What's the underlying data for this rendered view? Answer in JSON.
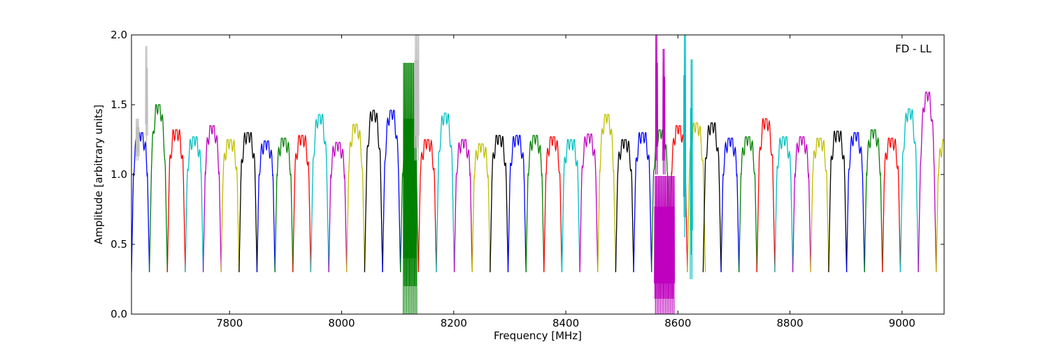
{
  "chart_data": {
    "type": "line",
    "title": "",
    "annotation": "FD - LL",
    "xlabel": "Frequency [MHz]",
    "ylabel": "Amplitude [arbitrary units]",
    "xlim": [
      7625,
      9075
    ],
    "ylim": [
      0.0,
      2.0
    ],
    "xticks": [
      7800,
      8000,
      8200,
      8400,
      8600,
      8800,
      9000
    ],
    "xtick_labels": [
      "7800",
      "8000",
      "8200",
      "8400",
      "8600",
      "8800",
      "9000"
    ],
    "yticks": [
      0.0,
      0.5,
      1.0,
      1.5,
      2.0
    ],
    "ytick_labels": [
      "0.0",
      "0.5",
      "1.0",
      "1.5",
      "2.0"
    ],
    "grid": false,
    "channel_width_mhz": 32,
    "color_cycle": [
      "#0000ff",
      "#008000",
      "#ff0000",
      "#00bfbf",
      "#bf00bf",
      "#bfbf00",
      "#000000"
    ],
    "channels": [
      {
        "start": 7625,
        "peak": 1.3,
        "color": "#0000ff"
      },
      {
        "start": 7657,
        "peak": 1.5,
        "color": "#008000"
      },
      {
        "start": 7689,
        "peak": 1.32,
        "color": "#ff0000"
      },
      {
        "start": 7721,
        "peak": 1.27,
        "color": "#00bfbf"
      },
      {
        "start": 7753,
        "peak": 1.35,
        "color": "#bf00bf"
      },
      {
        "start": 7785,
        "peak": 1.25,
        "color": "#bfbf00"
      },
      {
        "start": 7817,
        "peak": 1.3,
        "color": "#000000"
      },
      {
        "start": 7849,
        "peak": 1.24,
        "color": "#0000ff"
      },
      {
        "start": 7881,
        "peak": 1.26,
        "color": "#008000"
      },
      {
        "start": 7913,
        "peak": 1.28,
        "color": "#ff0000"
      },
      {
        "start": 7945,
        "peak": 1.43,
        "color": "#00bfbf"
      },
      {
        "start": 7977,
        "peak": 1.23,
        "color": "#bf00bf"
      },
      {
        "start": 8009,
        "peak": 1.36,
        "color": "#bfbf00"
      },
      {
        "start": 8041,
        "peak": 1.46,
        "color": "#000000"
      },
      {
        "start": 8073,
        "peak": 1.46,
        "color": "#0000ff"
      },
      {
        "start": 8105,
        "peak": 1.3,
        "color": "#008000"
      },
      {
        "start": 8137,
        "peak": 1.25,
        "color": "#ff0000"
      },
      {
        "start": 8169,
        "peak": 1.44,
        "color": "#00bfbf"
      },
      {
        "start": 8201,
        "peak": 1.25,
        "color": "#bf00bf"
      },
      {
        "start": 8233,
        "peak": 1.22,
        "color": "#bfbf00"
      },
      {
        "start": 8265,
        "peak": 1.28,
        "color": "#000000"
      },
      {
        "start": 8297,
        "peak": 1.28,
        "color": "#0000ff"
      },
      {
        "start": 8329,
        "peak": 1.28,
        "color": "#008000"
      },
      {
        "start": 8361,
        "peak": 1.27,
        "color": "#ff0000"
      },
      {
        "start": 8393,
        "peak": 1.25,
        "color": "#00bfbf"
      },
      {
        "start": 8425,
        "peak": 1.29,
        "color": "#bf00bf"
      },
      {
        "start": 8457,
        "peak": 1.43,
        "color": "#bfbf00"
      },
      {
        "start": 8489,
        "peak": 1.25,
        "color": "#000000"
      },
      {
        "start": 8521,
        "peak": 1.3,
        "color": "#0000ff"
      },
      {
        "start": 8553,
        "peak": 1.32,
        "color": "#008000"
      },
      {
        "start": 8585,
        "peak": 1.35,
        "color": "#ff0000"
      },
      {
        "start": 8617,
        "peak": 1.37,
        "color": "#bfbf00"
      },
      {
        "start": 8645,
        "peak": 1.37,
        "color": "#000000"
      },
      {
        "start": 8677,
        "peak": 1.26,
        "color": "#0000ff"
      },
      {
        "start": 8709,
        "peak": 1.27,
        "color": "#008000"
      },
      {
        "start": 8741,
        "peak": 1.4,
        "color": "#ff0000"
      },
      {
        "start": 8773,
        "peak": 1.27,
        "color": "#00bfbf"
      },
      {
        "start": 8805,
        "peak": 1.27,
        "color": "#bf00bf"
      },
      {
        "start": 8837,
        "peak": 1.26,
        "color": "#bfbf00"
      },
      {
        "start": 8869,
        "peak": 1.31,
        "color": "#000000"
      },
      {
        "start": 8901,
        "peak": 1.3,
        "color": "#0000ff"
      },
      {
        "start": 8933,
        "peak": 1.32,
        "color": "#008000"
      },
      {
        "start": 8965,
        "peak": 1.26,
        "color": "#ff0000"
      },
      {
        "start": 8997,
        "peak": 1.47,
        "color": "#00bfbf"
      },
      {
        "start": 9029,
        "peak": 1.59,
        "color": "#bf00bf"
      },
      {
        "start": 9061,
        "peak": 1.25,
        "color": "#bfbf00"
      }
    ],
    "rfi": [
      {
        "center": 8122,
        "halfwidth": 12,
        "low": 0.0,
        "high": 2.0,
        "color": "#008000"
      },
      {
        "center": 8134,
        "halfwidth": 4,
        "low": 1.1,
        "high": 2.0,
        "color": "#bfbfbf"
      },
      {
        "center": 8576,
        "halfwidth": 18,
        "low": 0.0,
        "high": 1.1,
        "color": "#bf00bf"
      },
      {
        "center": 8562,
        "halfwidth": 2,
        "low": 1.0,
        "high": 2.0,
        "color": "#bf00bf"
      },
      {
        "center": 8575,
        "halfwidth": 2,
        "low": 1.0,
        "high": 2.0,
        "color": "#bf00bf"
      },
      {
        "center": 8612,
        "halfwidth": 2,
        "low": 0.55,
        "high": 2.0,
        "color": "#00bfbf"
      },
      {
        "center": 8624,
        "halfwidth": 2,
        "low": 0.25,
        "high": 2.0,
        "color": "#00bfbf"
      },
      {
        "center": 7636,
        "halfwidth": 3,
        "low": 1.1,
        "high": 1.4,
        "color": "#bfbfbf"
      },
      {
        "center": 7652,
        "halfwidth": 2,
        "low": 1.2,
        "high": 2.0,
        "color": "#bfbfbf"
      }
    ]
  }
}
